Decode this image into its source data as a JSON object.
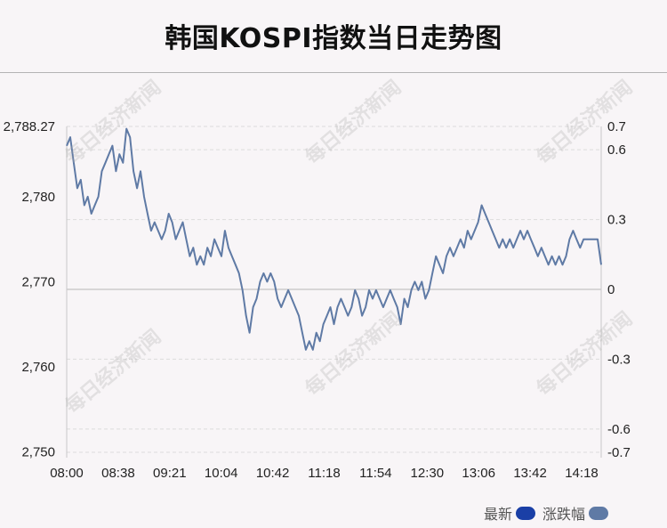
{
  "header": {
    "title": "韩国KOSPI指数当日走势图"
  },
  "watermark": "每日经济新闻",
  "legend": [
    {
      "label": "最新",
      "color": "#1a3fa6"
    },
    {
      "label": "涨跌幅",
      "color": "#5f7aa5"
    }
  ],
  "chart_data": {
    "type": "line",
    "title": "韩国KOSPI指数当日走势图",
    "xlabel": "",
    "ylabel": "",
    "x_ticks": [
      "08:00",
      "08:38",
      "09:21",
      "10:04",
      "10:42",
      "11:18",
      "11:54",
      "12:30",
      "13:06",
      "13:42",
      "14:18"
    ],
    "y_left_ticks": [
      "2,750",
      "2,760",
      "2,770",
      "2,780",
      "2,788.27"
    ],
    "y_left_tick_values": [
      2750,
      2760,
      2770,
      2780,
      2788.27
    ],
    "y_right_ticks": [
      "-0.7",
      "-0.6",
      "-0.3",
      "0",
      "0.3",
      "0.6",
      "0.7"
    ],
    "y_right_tick_values": [
      -0.7,
      -0.6,
      -0.3,
      0,
      0.3,
      0.6,
      0.7
    ],
    "ylim": [
      2749.3,
      2788.27
    ],
    "reference_line": 2769.1,
    "line_color": "#5f7aa5",
    "series": [
      {
        "values": [
          2786,
          2787,
          2784,
          2781,
          2782,
          2779,
          2780,
          2778,
          2779,
          2780,
          2783,
          2784,
          2785,
          2786,
          2783,
          2785,
          2784,
          2788,
          2787,
          2783,
          2781,
          2783,
          2780,
          2778,
          2776,
          2777,
          2776,
          2775,
          2776,
          2778,
          2777,
          2775,
          2776,
          2777,
          2775,
          2773,
          2774,
          2772,
          2773,
          2772,
          2774,
          2773,
          2775,
          2774,
          2773,
          2776,
          2774,
          2773,
          2772,
          2771,
          2769,
          2766,
          2764,
          2767,
          2768,
          2770,
          2771,
          2770,
          2771,
          2770,
          2768,
          2767,
          2768,
          2769,
          2768,
          2767,
          2766,
          2764,
          2762,
          2763,
          2762,
          2764,
          2763,
          2765,
          2766,
          2767,
          2765,
          2767,
          2768,
          2767,
          2766,
          2767,
          2769,
          2768,
          2766,
          2767,
          2769,
          2768,
          2769,
          2768,
          2767,
          2768,
          2769,
          2768,
          2767,
          2765,
          2768,
          2767,
          2769,
          2770,
          2769,
          2770,
          2768,
          2769,
          2771,
          2773,
          2772,
          2771,
          2773,
          2774,
          2773,
          2774,
          2775,
          2774,
          2776,
          2775,
          2776,
          2777,
          2779,
          2778,
          2777,
          2776,
          2775,
          2774,
          2775,
          2774,
          2775,
          2774,
          2775,
          2776,
          2775,
          2776,
          2775,
          2774,
          2773,
          2774,
          2773,
          2772,
          2773,
          2772,
          2773,
          2772,
          2773,
          2775,
          2776,
          2775,
          2774,
          2775,
          2775,
          2775,
          2775,
          2775,
          2772
        ]
      }
    ]
  }
}
